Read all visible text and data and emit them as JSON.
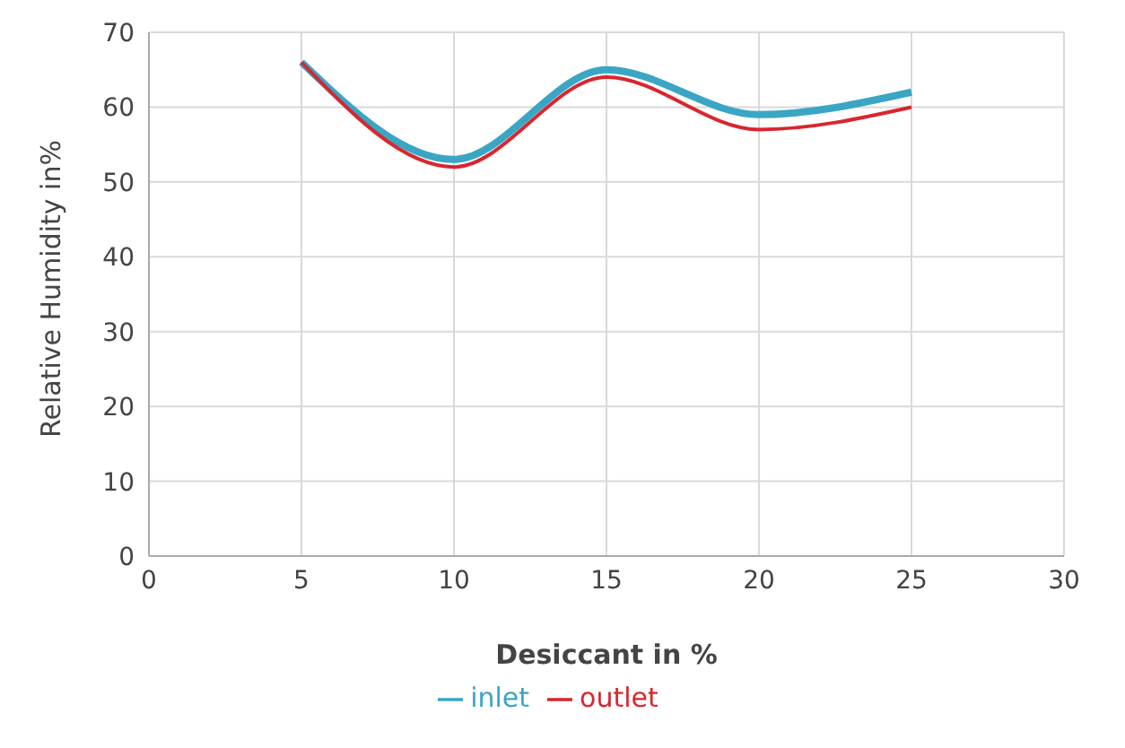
{
  "chart_data": {
    "type": "line",
    "xlabel": "Desiccant in %",
    "ylabel": "Relative Humidity in%",
    "x": [
      5,
      10,
      15,
      20,
      25
    ],
    "series": [
      {
        "name": "inlet",
        "color": "#3aa6c4",
        "values": [
          66,
          53,
          65,
          59,
          62
        ]
      },
      {
        "name": "outlet",
        "color": "#d9262e",
        "values": [
          66,
          52,
          64,
          57,
          60
        ]
      }
    ],
    "xlim": [
      0,
      30
    ],
    "xticks": [
      0,
      5,
      10,
      15,
      20,
      25,
      30
    ],
    "ylim": [
      0,
      70
    ],
    "yticks": [
      0,
      10,
      20,
      30,
      40,
      50,
      60,
      70
    ],
    "grid": true,
    "legend": "bottom",
    "marker": "none",
    "line_style": "solid"
  }
}
